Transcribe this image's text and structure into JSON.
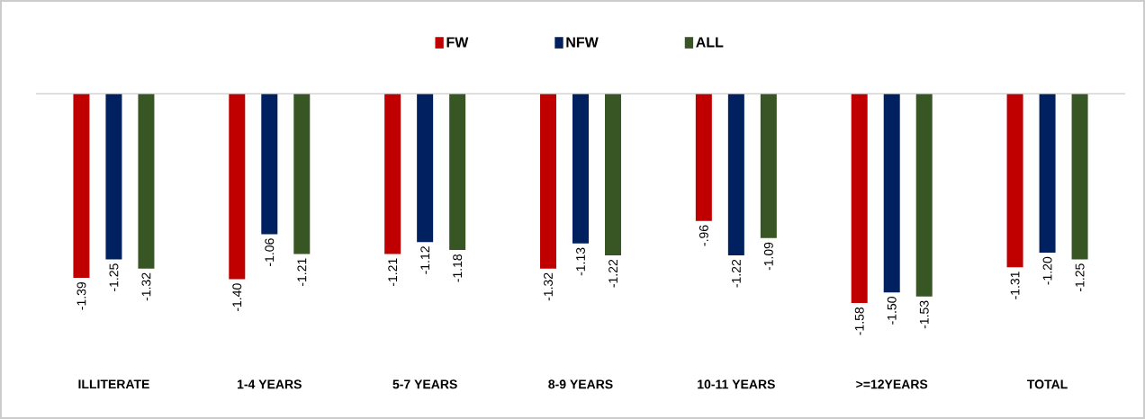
{
  "chart_data": {
    "type": "bar",
    "legend": "top",
    "categories": [
      "ILLITERATE",
      "1-4 YEARS",
      "5-7 YEARS",
      "8-9 YEARS",
      "10-11 YEARS",
      ">=12YEARS",
      "TOTAL"
    ],
    "series": [
      {
        "name": "FW",
        "color": "#c00000",
        "values": [
          -1.39,
          -1.4,
          -1.21,
          -1.32,
          -0.96,
          -1.58,
          -1.31
        ],
        "value_labels": [
          "-1.39",
          "-1.40",
          "-1.21",
          "-1.32",
          "-.96",
          "-1.58",
          "-1.31"
        ]
      },
      {
        "name": "NFW",
        "color": "#002060",
        "values": [
          -1.25,
          -1.06,
          -1.12,
          -1.13,
          -1.22,
          -1.5,
          -1.2
        ],
        "value_labels": [
          "-1.25",
          "-1.06",
          "-1.12",
          "-1.13",
          "-1.22",
          "-1.50",
          "-1.20"
        ]
      },
      {
        "name": "ALL",
        "color": "#375623",
        "values": [
          -1.32,
          -1.21,
          -1.18,
          -1.22,
          -1.09,
          -1.53,
          -1.25
        ],
        "value_labels": [
          "-1.32",
          "-1.21",
          "-1.18",
          "-1.22",
          "-1.09",
          "-1.53",
          "-1.25"
        ]
      }
    ]
  }
}
